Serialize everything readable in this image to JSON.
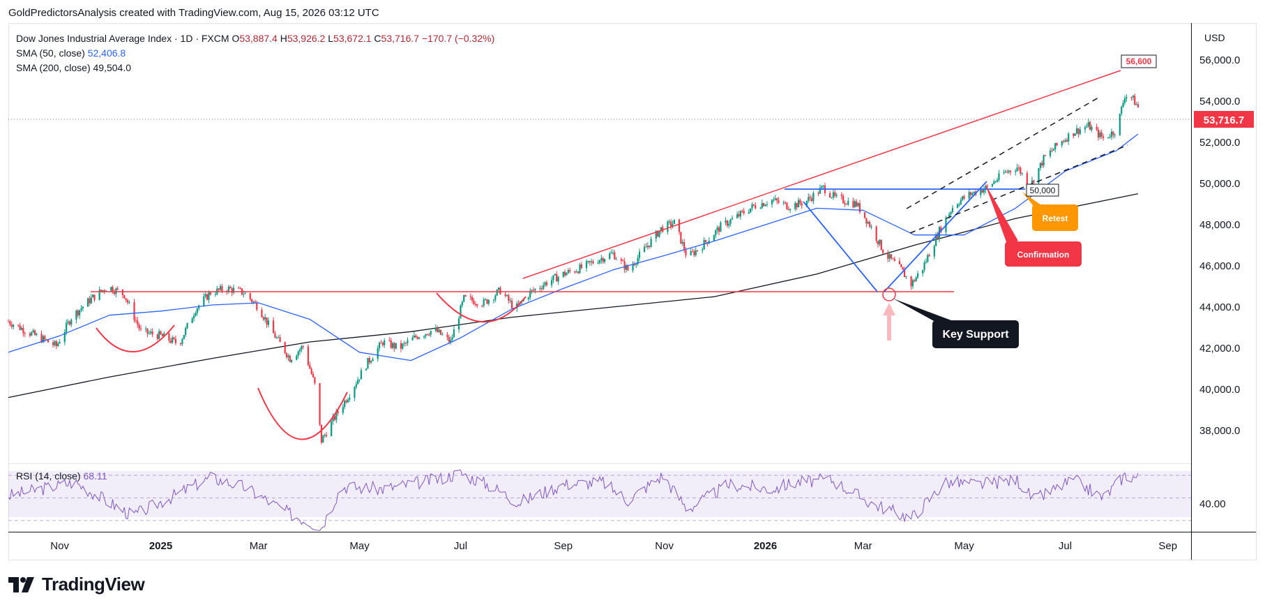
{
  "credit": "GoldPredictorsAnalysis created with TradingView.com, Aug 15, 2026 03:12 UTC",
  "legend": {
    "instrument": "Dow Jones Industrial Average Index · 1D · FXCM",
    "open_label": "O",
    "open": "53,887.4",
    "high_label": "H",
    "high": "53,926.2",
    "low_label": "L",
    "low": "53,672.1",
    "close_label": "C",
    "close": "53,716.7",
    "change": "−170.7 (−0.32%)",
    "sma50_label": "SMA (50, close)",
    "sma50_value": "52,406.8",
    "sma200_label": "SMA (200, close)",
    "sma200_value": "49,504.0"
  },
  "rsi": {
    "label": "RSI (14, close)",
    "value": "68.11",
    "tick_label": "40.00"
  },
  "currency": "USD",
  "brand": "TradingView",
  "colors": {
    "up": "#089981",
    "down": "#f23645",
    "sma50": "#2962ff",
    "sma200": "#131722",
    "rsi": "#7e57c2",
    "trend_red": "#f23645",
    "pattern_blue": "#2962ff",
    "retest_orange": "#ff9800",
    "confirmation_red": "#f23645",
    "key_support_bg": "#131722"
  },
  "chart_data": {
    "type": "candlestick",
    "x_ticks": [
      "Nov",
      "2025",
      "Mar",
      "May",
      "Jul",
      "Sep",
      "Nov",
      "2026",
      "Mar",
      "May",
      "Jul",
      "Sep"
    ],
    "x_tick_dates": [
      "2024-11-01",
      "2025-01-01",
      "2025-03-01",
      "2025-05-01",
      "2025-07-01",
      "2025-09-01",
      "2025-11-01",
      "2026-01-01",
      "2026-03-01",
      "2026-05-01",
      "2026-07-01",
      "2026-09-01"
    ],
    "x_range": [
      "2024-10-01",
      "2026-09-15"
    ],
    "y_ticks": [
      38000,
      40000,
      42000,
      44000,
      46000,
      48000,
      50000,
      52000,
      54000,
      56000
    ],
    "y_tick_labels": [
      "38,000.0",
      "40,000.0",
      "42,000.0",
      "44,000.0",
      "46,000.0",
      "48,000.0",
      "50,000.0",
      "52,000.0",
      "54,000.0",
      "56,000.0"
    ],
    "ylim": [
      36400,
      57800
    ],
    "last_price": 53716.7,
    "last_price_label": "53,716.7",
    "close_path": [
      [
        "2024-10-01",
        43300
      ],
      [
        "2024-10-15",
        42700
      ],
      [
        "2024-10-30",
        42100
      ],
      [
        "2024-11-08",
        43500
      ],
      [
        "2024-11-20",
        44400
      ],
      [
        "2024-11-30",
        45000
      ],
      [
        "2024-12-10",
        44600
      ],
      [
        "2024-12-20",
        42800
      ],
      [
        "2025-01-01",
        42600
      ],
      [
        "2025-01-12",
        42200
      ],
      [
        "2025-01-22",
        43900
      ],
      [
        "2025-01-31",
        44700
      ],
      [
        "2025-02-10",
        44900
      ],
      [
        "2025-02-20",
        44700
      ],
      [
        "2025-03-01",
        44000
      ],
      [
        "2025-03-10",
        42700
      ],
      [
        "2025-03-20",
        41500
      ],
      [
        "2025-03-28",
        42100
      ],
      [
        "2025-04-04",
        40200
      ],
      [
        "2025-04-08",
        37500
      ],
      [
        "2025-04-15",
        38500
      ],
      [
        "2025-04-25",
        39800
      ],
      [
        "2025-05-05",
        41200
      ],
      [
        "2025-05-15",
        42300
      ],
      [
        "2025-05-25",
        42000
      ],
      [
        "2025-06-05",
        42600
      ],
      [
        "2025-06-15",
        42900
      ],
      [
        "2025-06-25",
        42300
      ],
      [
        "2025-07-03",
        44400
      ],
      [
        "2025-07-15",
        44200
      ],
      [
        "2025-07-25",
        44800
      ],
      [
        "2025-08-03",
        43900
      ],
      [
        "2025-08-12",
        44700
      ],
      [
        "2025-08-22",
        45200
      ],
      [
        "2025-09-01",
        45600
      ],
      [
        "2025-09-12",
        45900
      ],
      [
        "2025-09-22",
        46300
      ],
      [
        "2025-10-01",
        46600
      ],
      [
        "2025-10-10",
        45800
      ],
      [
        "2025-10-20",
        46800
      ],
      [
        "2025-10-30",
        47800
      ],
      [
        "2025-11-07",
        48100
      ],
      [
        "2025-11-15",
        46400
      ],
      [
        "2025-11-24",
        47000
      ],
      [
        "2025-12-05",
        47900
      ],
      [
        "2025-12-15",
        48400
      ],
      [
        "2025-12-25",
        48900
      ],
      [
        "2026-01-05",
        49200
      ],
      [
        "2026-01-15",
        48900
      ],
      [
        "2026-01-25",
        49100
      ],
      [
        "2026-02-05",
        49800
      ],
      [
        "2026-02-12",
        49300
      ],
      [
        "2026-02-25",
        49000
      ],
      [
        "2026-03-05",
        48000
      ],
      [
        "2026-03-14",
        46600
      ],
      [
        "2026-03-24",
        45800
      ],
      [
        "2026-03-30",
        45100
      ],
      [
        "2026-04-06",
        45900
      ],
      [
        "2026-04-16",
        47700
      ],
      [
        "2026-04-25",
        49000
      ],
      [
        "2026-05-05",
        49500
      ],
      [
        "2026-05-15",
        49800
      ],
      [
        "2026-05-25",
        50500
      ],
      [
        "2026-06-02",
        50800
      ],
      [
        "2026-06-10",
        49900
      ],
      [
        "2026-06-18",
        51200
      ],
      [
        "2026-06-28",
        52000
      ],
      [
        "2026-07-06",
        52500
      ],
      [
        "2026-07-15",
        52800
      ],
      [
        "2026-07-24",
        52200
      ],
      [
        "2026-08-01",
        52600
      ],
      [
        "2026-08-06",
        54300
      ],
      [
        "2026-08-10",
        54200
      ],
      [
        "2026-08-14",
        53717
      ]
    ],
    "sma50": [
      [
        "2024-10-01",
        41800
      ],
      [
        "2024-11-01",
        42600
      ],
      [
        "2024-12-01",
        43600
      ],
      [
        "2025-01-01",
        43800
      ],
      [
        "2025-02-01",
        44100
      ],
      [
        "2025-03-01",
        44200
      ],
      [
        "2025-04-01",
        43400
      ],
      [
        "2025-05-01",
        41800
      ],
      [
        "2025-06-01",
        41400
      ],
      [
        "2025-07-01",
        42500
      ],
      [
        "2025-08-01",
        43900
      ],
      [
        "2025-09-01",
        44900
      ],
      [
        "2025-10-01",
        45800
      ],
      [
        "2025-11-01",
        46500
      ],
      [
        "2025-12-01",
        47200
      ],
      [
        "2026-01-01",
        48000
      ],
      [
        "2026-02-01",
        48800
      ],
      [
        "2026-03-01",
        48700
      ],
      [
        "2026-04-01",
        47500
      ],
      [
        "2026-05-01",
        47500
      ],
      [
        "2026-06-01",
        48800
      ],
      [
        "2026-07-01",
        50600
      ],
      [
        "2026-08-01",
        51600
      ],
      [
        "2026-08-14",
        52407
      ]
    ],
    "sma200": [
      [
        "2024-10-01",
        39600
      ],
      [
        "2024-12-01",
        40600
      ],
      [
        "2025-02-01",
        41500
      ],
      [
        "2025-04-01",
        42300
      ],
      [
        "2025-06-01",
        42800
      ],
      [
        "2025-08-01",
        43500
      ],
      [
        "2025-10-01",
        44000
      ],
      [
        "2025-12-01",
        44500
      ],
      [
        "2026-02-01",
        45600
      ],
      [
        "2026-04-01",
        47000
      ],
      [
        "2026-06-01",
        48300
      ],
      [
        "2026-08-14",
        49504
      ]
    ],
    "rsi_range": [
      20,
      80
    ],
    "rsi_bands": [
      30,
      50,
      70
    ],
    "rsi_ticks": [
      40
    ],
    "rsi_path": [
      [
        "2024-10-01",
        52
      ],
      [
        "2024-11-10",
        64
      ],
      [
        "2024-12-15",
        34
      ],
      [
        "2025-01-31",
        68
      ],
      [
        "2025-02-20",
        60
      ],
      [
        "2025-03-20",
        36
      ],
      [
        "2025-04-08",
        24
      ],
      [
        "2025-04-20",
        60
      ],
      [
        "2025-05-15",
        58
      ],
      [
        "2025-06-15",
        66
      ],
      [
        "2025-07-01",
        72
      ],
      [
        "2025-07-20",
        60
      ],
      [
        "2025-08-05",
        46
      ],
      [
        "2025-09-01",
        62
      ],
      [
        "2025-09-25",
        64
      ],
      [
        "2025-10-10",
        48
      ],
      [
        "2025-10-31",
        70
      ],
      [
        "2025-11-15",
        40
      ],
      [
        "2025-12-10",
        62
      ],
      [
        "2026-01-05",
        58
      ],
      [
        "2026-01-20",
        64
      ],
      [
        "2026-02-10",
        66
      ],
      [
        "2026-03-05",
        46
      ],
      [
        "2026-03-30",
        32
      ],
      [
        "2026-04-20",
        64
      ],
      [
        "2026-05-10",
        62
      ],
      [
        "2026-06-02",
        66
      ],
      [
        "2026-06-12",
        48
      ],
      [
        "2026-07-06",
        66
      ],
      [
        "2026-07-24",
        50
      ],
      [
        "2026-08-06",
        70
      ],
      [
        "2026-08-14",
        68
      ]
    ],
    "annotations": {
      "resistance_label": "56,600",
      "neckline_label": "50,000",
      "retest": "Retest",
      "confirmation": "Confirmation",
      "key_support": "Key Support"
    }
  }
}
